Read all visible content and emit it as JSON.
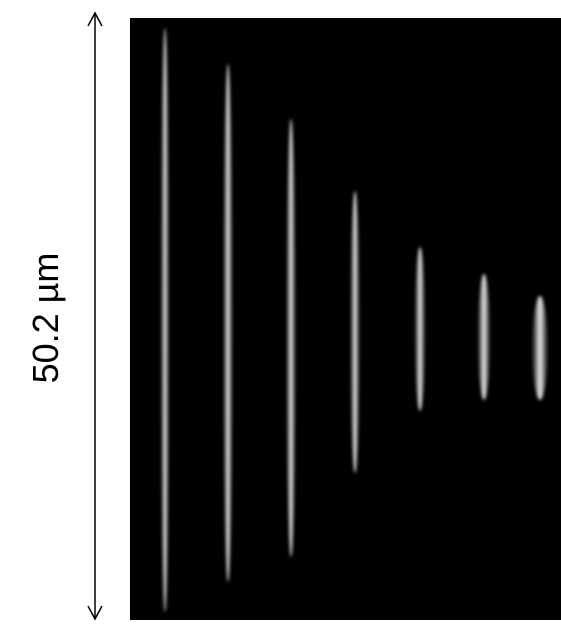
{
  "scale_label": "50.2 µm"
}
